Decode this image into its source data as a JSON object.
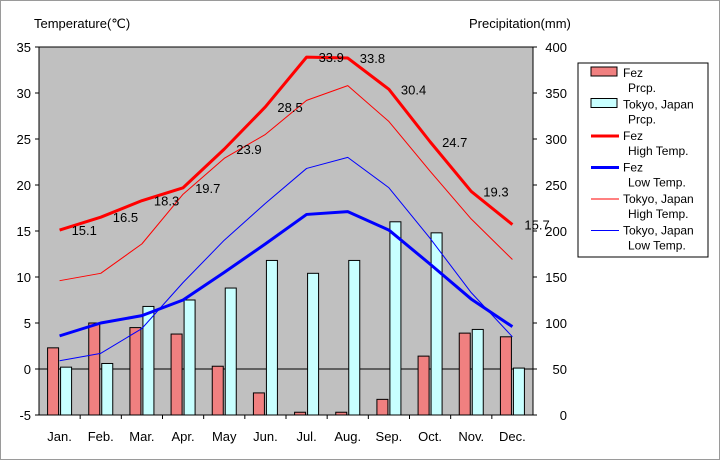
{
  "chart_data": {
    "type": "bar+line",
    "title": "",
    "y_left_label": "Temperature(℃)",
    "y_right_label": "Precipitation(mm)",
    "y_left_lim": [
      -5,
      35
    ],
    "y_right_lim": [
      0,
      400
    ],
    "y_left_ticks": [
      "35",
      "30",
      "25",
      "20",
      "15",
      "10",
      "5",
      "0",
      "-5"
    ],
    "y_right_ticks": [
      "400",
      "350",
      "300",
      "250",
      "200",
      "150",
      "100",
      "50",
      "0"
    ],
    "grid": false,
    "legend_position": "top-right",
    "categories": [
      "Jan.",
      "Feb.",
      "Mar.",
      "Apr.",
      "May",
      "Jun.",
      "Jul.",
      "Aug.",
      "Sep.",
      "Oct.",
      "Nov.",
      "Dec."
    ],
    "bars": [
      {
        "name": "Fez\nPrcp.",
        "color": "#f08080",
        "values": [
          73,
          100,
          95,
          88,
          53,
          24,
          3,
          3,
          17,
          64,
          89,
          85
        ]
      },
      {
        "name": "Tokyo, Japan\nPrcp.",
        "color": "#c8ffff",
        "values": [
          52,
          56,
          118,
          125,
          138,
          168,
          154,
          168,
          210,
          198,
          93,
          51
        ]
      }
    ],
    "lines": [
      {
        "name": "Fez\nHigh Temp.",
        "color": "#ff0000",
        "width": 3,
        "values": [
          15.1,
          16.5,
          18.3,
          19.7,
          23.9,
          28.5,
          33.9,
          33.8,
          30.4,
          24.7,
          19.3,
          15.7
        ],
        "labels": [
          "15.1",
          "16.5",
          "18.3",
          "19.7",
          "23.9",
          "28.5",
          "33.9",
          "33.8",
          "30.4",
          "24.7",
          "19.3",
          "15.7"
        ]
      },
      {
        "name": "Fez\nLow Temp.",
        "color": "#0000ff",
        "width": 3,
        "values": [
          3.6,
          5.0,
          5.8,
          7.5,
          10.5,
          13.6,
          16.8,
          17.1,
          15.1,
          11.4,
          7.6,
          4.6
        ]
      },
      {
        "name": "Tokyo, Japan\nHigh Temp.",
        "color": "#ff0000",
        "width": 1,
        "values": [
          9.6,
          10.4,
          13.6,
          19.0,
          22.9,
          25.5,
          29.2,
          30.8,
          26.9,
          21.5,
          16.3,
          11.9
        ]
      },
      {
        "name": "Tokyo, Japan\nLow Temp.",
        "color": "#0000ff",
        "width": 1,
        "values": [
          0.9,
          1.7,
          4.4,
          9.4,
          14.0,
          18.0,
          21.8,
          23.0,
          19.7,
          14.2,
          8.3,
          3.5
        ]
      }
    ]
  }
}
